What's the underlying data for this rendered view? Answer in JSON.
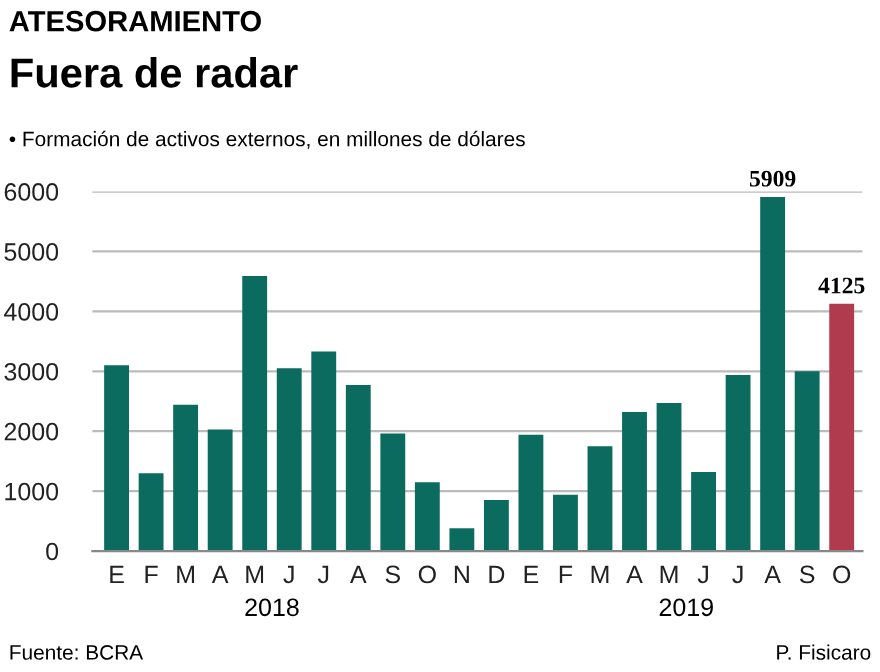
{
  "chart_data": {
    "type": "bar",
    "title": "Fuera de radar",
    "subtitle": "• Formación de activos externos, en millones de dólares",
    "annotations": [
      "ATESORAMIENTO",
      "2018",
      "2019",
      "Fuente: BCRA",
      "P. Fisicaro"
    ],
    "categories": [
      "E",
      "F",
      "M",
      "A",
      "M",
      "J",
      "J",
      "A",
      "S",
      "O",
      "N",
      "D",
      "E",
      "F",
      "M",
      "A",
      "M",
      "J",
      "J",
      "A",
      "S",
      "O"
    ],
    "values": [
      3100,
      1300,
      2440,
      2030,
      4590,
      3050,
      3330,
      2770,
      1960,
      1150,
      380,
      850,
      1940,
      940,
      1750,
      2320,
      2470,
      1320,
      2940,
      5909,
      3000,
      4125
    ],
    "colors": [
      "#0b6b5e",
      "#0b6b5e",
      "#0b6b5e",
      "#0b6b5e",
      "#0b6b5e",
      "#0b6b5e",
      "#0b6b5e",
      "#0b6b5e",
      "#0b6b5e",
      "#0b6b5e",
      "#0b6b5e",
      "#0b6b5e",
      "#0b6b5e",
      "#0b6b5e",
      "#0b6b5e",
      "#0b6b5e",
      "#0b6b5e",
      "#0b6b5e",
      "#0b6b5e",
      "#0b6b5e",
      "#0b6b5e",
      "#b03a4e"
    ],
    "value_labels": [
      null,
      null,
      null,
      null,
      null,
      null,
      null,
      null,
      null,
      null,
      null,
      null,
      null,
      null,
      null,
      null,
      null,
      null,
      null,
      "5909",
      null,
      "4125"
    ],
    "ylim": [
      0,
      6000
    ],
    "yticks": [
      0,
      1000,
      2000,
      3000,
      4000,
      5000,
      6000
    ],
    "grid": "y"
  }
}
